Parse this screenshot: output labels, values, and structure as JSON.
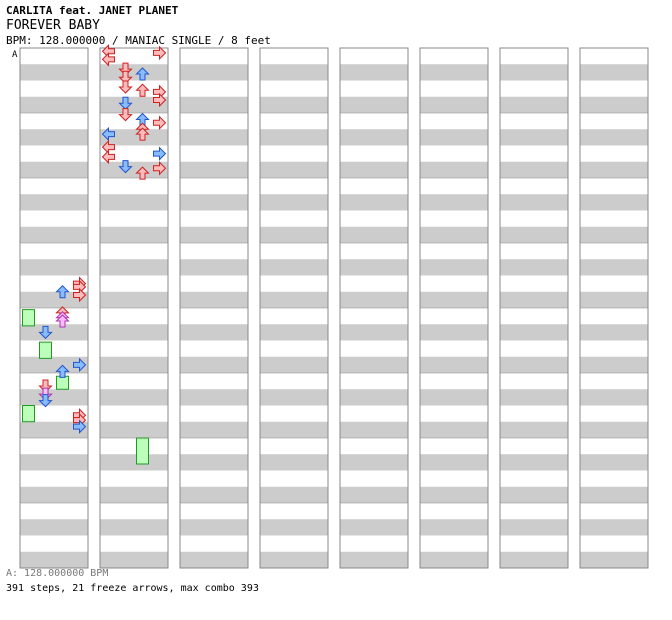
{
  "song": {
    "artist": "CARLITA feat. JANET PLANET",
    "title": "FOREVER BABY",
    "meta": "BPM: 128.000000 / MANIAC SINGLE / 8 feet"
  },
  "bpm_marker": "A",
  "footer": {
    "bpm_line": "A: 128.000000 BPM",
    "stats": "391 steps, 21 freeze arrows, max combo 393"
  },
  "colors": {
    "red_arrow": "#ffbbbb",
    "red_stroke": "#cc2222",
    "blue_arrow": "#88bbff",
    "blue_stroke": "#2255cc",
    "pink_arrow": "#ffbbff",
    "pink_stroke": "#aa33aa",
    "freeze_fill": "#bbffbb",
    "freeze_stroke": "#229922",
    "stripe": "#cccccc"
  },
  "chart_data": {
    "type": "step-chart",
    "lanes": [
      "left",
      "down",
      "up",
      "right"
    ],
    "columns": 8,
    "measures_per_column": 8,
    "bpm": 128,
    "difficulty": "MANIAC SINGLE",
    "feet": 8,
    "steps": [
      {
        "col": 1,
        "beat": 0.2,
        "lane": 0,
        "color": "red"
      },
      {
        "col": 1,
        "beat": 0.3,
        "lane": 3,
        "color": "red"
      },
      {
        "col": 1,
        "beat": 0.7,
        "lane": 0,
        "color": "red"
      },
      {
        "col": 1,
        "beat": 1.3,
        "lane": 1,
        "color": "red"
      },
      {
        "col": 1,
        "beat": 1.6,
        "lane": 2,
        "color": "blue"
      },
      {
        "col": 1,
        "beat": 1.8,
        "lane": 1,
        "color": "red"
      },
      {
        "col": 1,
        "beat": 2.4,
        "lane": 1,
        "color": "red"
      },
      {
        "col": 1,
        "beat": 2.6,
        "lane": 2,
        "color": "red"
      },
      {
        "col": 1,
        "beat": 2.7,
        "lane": 3,
        "color": "red"
      },
      {
        "col": 1,
        "beat": 3.4,
        "lane": 1,
        "color": "blue"
      },
      {
        "col": 1,
        "beat": 3.2,
        "lane": 3,
        "color": "red"
      },
      {
        "col": 1,
        "beat": 4.1,
        "lane": 1,
        "color": "red"
      },
      {
        "col": 1,
        "beat": 4.4,
        "lane": 2,
        "color": "blue"
      },
      {
        "col": 1,
        "beat": 4.6,
        "lane": 3,
        "color": "red"
      },
      {
        "col": 1,
        "beat": 5.0,
        "lane": 2,
        "color": "red"
      },
      {
        "col": 1,
        "beat": 5.3,
        "lane": 0,
        "color": "blue"
      },
      {
        "col": 1,
        "beat": 5.3,
        "lane": 2,
        "color": "red"
      },
      {
        "col": 1,
        "beat": 6.1,
        "lane": 0,
        "color": "red"
      },
      {
        "col": 1,
        "beat": 6.5,
        "lane": 3,
        "color": "blue"
      },
      {
        "col": 1,
        "beat": 6.7,
        "lane": 0,
        "color": "red"
      },
      {
        "col": 1,
        "beat": 7.3,
        "lane": 1,
        "color": "blue"
      },
      {
        "col": 1,
        "beat": 7.4,
        "lane": 3,
        "color": "red"
      },
      {
        "col": 1,
        "beat": 7.7,
        "lane": 2,
        "color": "red"
      },
      {
        "col": 0,
        "beat": 14.5,
        "lane": 3,
        "color": "red"
      },
      {
        "col": 0,
        "beat": 14.7,
        "lane": 3,
        "color": "red"
      },
      {
        "col": 0,
        "beat": 15.0,
        "lane": 2,
        "color": "blue"
      },
      {
        "col": 0,
        "beat": 15.2,
        "lane": 3,
        "color": "red"
      },
      {
        "col": 0,
        "beat": 16.3,
        "lane": 2,
        "color": "red"
      },
      {
        "col": 0,
        "beat": 16.6,
        "lane": 2,
        "color": "pink"
      },
      {
        "col": 0,
        "beat": 16.8,
        "lane": 2,
        "color": "pink"
      },
      {
        "col": 0,
        "beat": 17.5,
        "lane": 1,
        "color": "blue"
      },
      {
        "col": 0,
        "beat": 19.5,
        "lane": 3,
        "color": "blue"
      },
      {
        "col": 0,
        "beat": 19.9,
        "lane": 2,
        "color": "blue"
      },
      {
        "col": 0,
        "beat": 20.8,
        "lane": 1,
        "color": "red"
      },
      {
        "col": 0,
        "beat": 21.3,
        "lane": 1,
        "color": "pink"
      },
      {
        "col": 0,
        "beat": 21.7,
        "lane": 1,
        "color": "blue"
      },
      {
        "col": 0,
        "beat": 22.6,
        "lane": 3,
        "color": "red"
      },
      {
        "col": 0,
        "beat": 22.9,
        "lane": 3,
        "color": "red"
      },
      {
        "col": 0,
        "beat": 23.3,
        "lane": 3,
        "color": "blue"
      }
    ],
    "freezes": [
      {
        "col": 0,
        "beat_start": 16.1,
        "beat_end": 17.1,
        "lane": 0
      },
      {
        "col": 0,
        "beat_start": 18.1,
        "beat_end": 19.1,
        "lane": 1
      },
      {
        "col": 0,
        "beat_start": 20.2,
        "beat_end": 21.0,
        "lane": 2
      },
      {
        "col": 0,
        "beat_start": 22.0,
        "beat_end": 23.0,
        "lane": 0
      },
      {
        "col": 1,
        "beat_start": 24.0,
        "beat_end": 25.6,
        "lane": 2
      }
    ]
  }
}
